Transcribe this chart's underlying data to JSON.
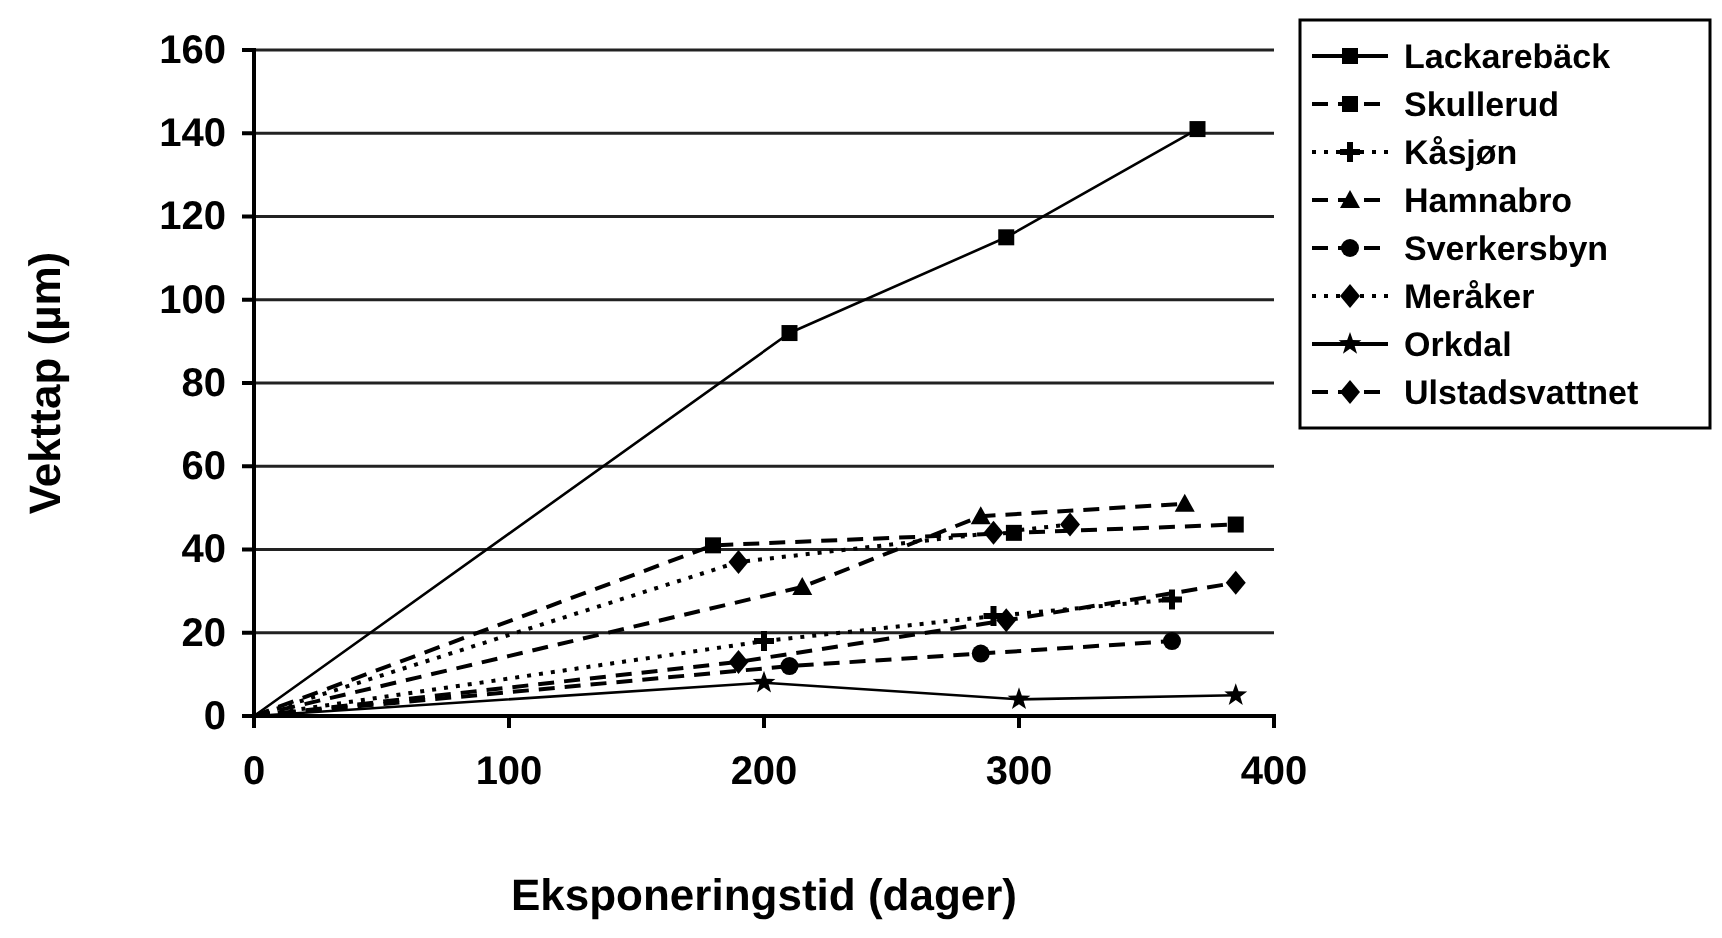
{
  "chart_data": {
    "type": "line",
    "xlabel": "Eksponeringstid (dager)",
    "ylabel": "Vekttap (µm)",
    "xlim": [
      0,
      400
    ],
    "xticks": [
      0,
      100,
      200,
      300,
      400
    ],
    "ylim": [
      0,
      160
    ],
    "yticks": [
      0,
      20,
      40,
      60,
      80,
      100,
      120,
      140,
      160
    ],
    "grid": "y",
    "legend": "right",
    "series": [
      {
        "name": "Lackarebäck",
        "color": "#000000",
        "marker": "square",
        "line_style": "solid",
        "x": [
          0,
          210,
          295,
          370
        ],
        "values": [
          0,
          92,
          115,
          141
        ]
      },
      {
        "name": "Skullerud",
        "color": "#000000",
        "marker": "square",
        "line_style": "dashed",
        "x": [
          0,
          180,
          298,
          385
        ],
        "values": [
          0,
          41,
          44,
          46
        ]
      },
      {
        "name": "Kåsjøn",
        "color": "#000000",
        "marker": "cross",
        "line_style": "dotted",
        "x": [
          0,
          200,
          290,
          360
        ],
        "values": [
          0,
          18,
          24,
          28
        ]
      },
      {
        "name": "Hamnabro",
        "color": "#000000",
        "marker": "triangle",
        "line_style": "dashed",
        "x": [
          0,
          215,
          285,
          365
        ],
        "values": [
          0,
          31,
          48,
          51
        ]
      },
      {
        "name": "Sverkersbyn",
        "color": "#000000",
        "marker": "circle",
        "line_style": "dashed",
        "x": [
          0,
          210,
          285,
          360
        ],
        "values": [
          0,
          12,
          15,
          18
        ]
      },
      {
        "name": "Meråker",
        "color": "#000000",
        "marker": "diamond",
        "line_style": "dotted",
        "x": [
          0,
          190,
          290,
          320
        ],
        "values": [
          0,
          37,
          44,
          46
        ]
      },
      {
        "name": "Orkdal",
        "color": "#000000",
        "marker": "star",
        "line_style": "solid",
        "x": [
          0,
          200,
          300,
          385
        ],
        "values": [
          0,
          8,
          4,
          5
        ]
      },
      {
        "name": "Ulstadsvattnet",
        "color": "#000000",
        "marker": "diamond",
        "line_style": "dashed",
        "x": [
          0,
          190,
          295,
          385
        ],
        "values": [
          0,
          13,
          23,
          32
        ]
      }
    ]
  }
}
